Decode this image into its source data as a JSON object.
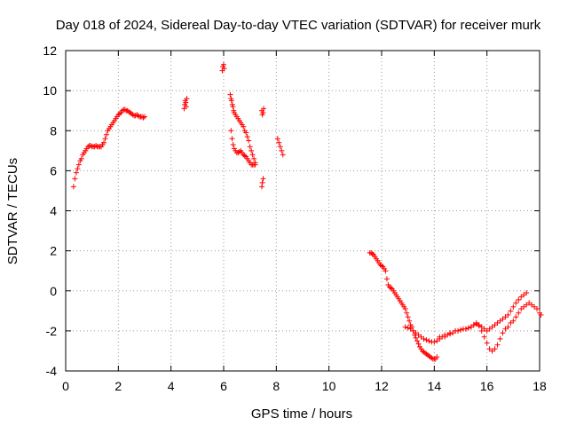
{
  "chart_data": {
    "type": "scatter",
    "title": "Day 018 of 2024, Sidereal Day-to-day VTEC variation (SDTVAR) for receiver murk",
    "xlabel": "GPS time / hours",
    "ylabel": "SDTVAR / TECUs",
    "xlim": [
      0,
      18
    ],
    "ylim": [
      -4,
      12
    ],
    "xticks": [
      0,
      2,
      4,
      6,
      8,
      10,
      12,
      14,
      16,
      18
    ],
    "yticks": [
      -4,
      -2,
      0,
      2,
      4,
      6,
      8,
      10,
      12
    ],
    "grid": true,
    "marker": "+",
    "color": "#ff0000",
    "series": [
      {
        "name": "SDTVAR",
        "x": [
          0.3,
          0.35,
          0.4,
          0.45,
          0.5,
          0.55,
          0.6,
          0.65,
          0.7,
          0.75,
          0.8,
          0.85,
          0.9,
          0.95,
          1.0,
          1.05,
          1.1,
          1.15,
          1.2,
          1.25,
          1.3,
          1.35,
          1.4,
          1.45,
          1.5,
          1.55,
          1.6,
          1.65,
          1.7,
          1.75,
          1.8,
          1.85,
          1.9,
          1.95,
          2.0,
          2.05,
          2.1,
          2.15,
          2.2,
          2.25,
          2.3,
          2.35,
          2.4,
          2.45,
          2.5,
          2.55,
          2.6,
          2.65,
          2.7,
          2.75,
          2.8,
          2.85,
          2.9,
          2.95,
          3.0,
          4.5,
          4.52,
          4.54,
          4.56,
          4.58,
          4.6,
          5.95,
          5.97,
          6.0,
          6.02,
          6.25,
          6.28,
          6.3,
          6.33,
          6.35,
          6.38,
          6.4,
          6.45,
          6.5,
          6.55,
          6.6,
          6.65,
          6.7,
          6.75,
          6.8,
          6.85,
          6.9,
          6.95,
          7.0,
          7.05,
          7.1,
          7.15,
          7.2,
          6.28,
          6.32,
          6.36,
          6.4,
          6.45,
          6.5,
          6.55,
          6.6,
          6.65,
          6.7,
          6.75,
          6.8,
          6.85,
          6.9,
          6.95,
          7.0,
          7.05,
          7.1,
          7.15,
          7.2,
          7.45,
          7.47,
          7.5,
          7.52,
          7.45,
          7.47,
          7.5,
          8.05,
          8.1,
          8.15,
          8.2,
          8.25,
          11.55,
          11.6,
          11.65,
          11.7,
          11.75,
          11.8,
          11.85,
          11.9,
          11.95,
          12.0,
          12.05,
          12.1,
          12.15,
          12.2,
          12.25,
          12.3,
          12.35,
          12.4,
          12.45,
          12.5,
          12.55,
          12.6,
          12.65,
          12.7,
          12.75,
          12.8,
          12.85,
          12.9,
          12.95,
          13.0,
          13.05,
          13.1,
          13.15,
          13.2,
          13.25,
          13.3,
          13.35,
          13.4,
          13.45,
          13.5,
          13.55,
          13.6,
          13.65,
          13.7,
          13.75,
          13.8,
          13.85,
          13.9,
          13.95,
          14.0,
          14.05,
          14.1,
          12.9,
          13.0,
          13.1,
          13.2,
          13.3,
          13.4,
          13.5,
          13.6,
          13.7,
          13.8,
          13.9,
          14.0,
          14.1,
          14.2,
          14.3,
          14.4,
          14.5,
          14.6,
          14.7,
          14.8,
          14.9,
          15.0,
          15.1,
          15.2,
          15.3,
          15.4,
          15.5,
          15.6,
          15.7,
          15.8,
          15.9,
          16.0,
          16.1,
          16.2,
          16.3,
          16.4,
          16.5,
          16.6,
          16.7,
          16.8,
          16.9,
          17.0,
          17.1,
          17.2,
          17.3,
          17.4,
          17.5,
          14.2,
          14.4,
          14.6,
          14.8,
          15.0,
          15.2,
          15.3,
          15.4,
          15.5,
          15.6,
          15.7,
          15.8,
          15.9,
          16.0,
          16.1,
          16.2,
          16.3,
          16.4,
          16.5,
          16.6,
          16.7,
          16.8,
          16.9,
          17.0,
          17.1,
          17.2,
          17.3,
          17.4,
          17.5,
          17.6,
          17.7,
          17.8,
          17.9,
          18.0,
          18.05
        ],
        "y": [
          5.2,
          5.6,
          5.9,
          6.1,
          6.3,
          6.5,
          6.6,
          6.8,
          6.9,
          7.0,
          7.1,
          7.2,
          7.25,
          7.25,
          7.2,
          7.2,
          7.2,
          7.25,
          7.2,
          7.2,
          7.2,
          7.2,
          7.3,
          7.4,
          7.6,
          7.8,
          8.0,
          8.1,
          8.2,
          8.3,
          8.4,
          8.5,
          8.6,
          8.7,
          8.8,
          8.85,
          8.9,
          9.0,
          9.05,
          9.05,
          9.0,
          9.0,
          8.95,
          8.9,
          8.85,
          8.8,
          8.75,
          8.75,
          8.8,
          8.75,
          8.7,
          8.7,
          8.7,
          8.65,
          8.7,
          9.1,
          9.3,
          9.5,
          9.4,
          9.2,
          9.6,
          11.0,
          11.2,
          11.3,
          11.1,
          9.8,
          9.6,
          9.5,
          9.3,
          9.2,
          9.0,
          8.9,
          8.8,
          8.7,
          8.6,
          8.5,
          8.4,
          8.3,
          8.2,
          8.0,
          7.9,
          7.7,
          7.5,
          7.2,
          7.0,
          6.8,
          6.6,
          6.4,
          8.0,
          7.6,
          7.3,
          7.1,
          7.0,
          6.9,
          6.9,
          6.95,
          7.0,
          6.9,
          6.8,
          6.75,
          6.7,
          6.6,
          6.5,
          6.4,
          6.3,
          6.3,
          6.3,
          6.3,
          9.0,
          8.8,
          8.9,
          9.1,
          5.2,
          5.4,
          5.6,
          7.6,
          7.4,
          7.2,
          7.0,
          6.8,
          1.9,
          1.9,
          1.85,
          1.8,
          1.7,
          1.6,
          1.5,
          1.4,
          1.3,
          1.25,
          1.2,
          1.1,
          1.0,
          0.6,
          0.3,
          0.2,
          0.15,
          0.1,
          0.0,
          -0.1,
          -0.2,
          -0.3,
          -0.4,
          -0.5,
          -0.6,
          -0.7,
          -0.8,
          -0.9,
          -1.1,
          -1.3,
          -1.5,
          -1.7,
          -1.8,
          -2.0,
          -2.2,
          -2.35,
          -2.5,
          -2.65,
          -2.8,
          -2.9,
          -3.0,
          -3.05,
          -3.1,
          -3.15,
          -3.2,
          -3.25,
          -3.3,
          -3.35,
          -3.4,
          -3.4,
          -3.4,
          -3.3,
          -1.8,
          -1.85,
          -1.9,
          -2.0,
          -2.1,
          -2.2,
          -2.3,
          -2.4,
          -2.45,
          -2.5,
          -2.55,
          -2.55,
          -2.5,
          -2.4,
          -2.3,
          -2.3,
          -2.2,
          -2.15,
          -2.1,
          -2.0,
          -2.0,
          -1.95,
          -1.9,
          -1.9,
          -1.85,
          -1.8,
          -1.7,
          -1.6,
          -1.7,
          -1.8,
          -1.9,
          -2.0,
          -1.9,
          -1.8,
          -1.7,
          -1.6,
          -1.5,
          -1.4,
          -1.3,
          -1.2,
          -1.0,
          -0.8,
          -0.6,
          -0.45,
          -0.3,
          -0.2,
          -0.1,
          -2.3,
          -2.2,
          -2.1,
          -2.0,
          -1.95,
          -1.9,
          -1.85,
          -1.8,
          -1.7,
          -1.65,
          -1.75,
          -2.0,
          -2.3,
          -2.6,
          -2.9,
          -3.0,
          -2.9,
          -2.7,
          -2.4,
          -2.1,
          -1.9,
          -1.8,
          -1.6,
          -1.5,
          -1.3,
          -1.1,
          -0.9,
          -0.8,
          -0.7,
          -0.6,
          -0.7,
          -0.8,
          -0.9,
          -1.1,
          -1.2
        ]
      }
    ]
  }
}
